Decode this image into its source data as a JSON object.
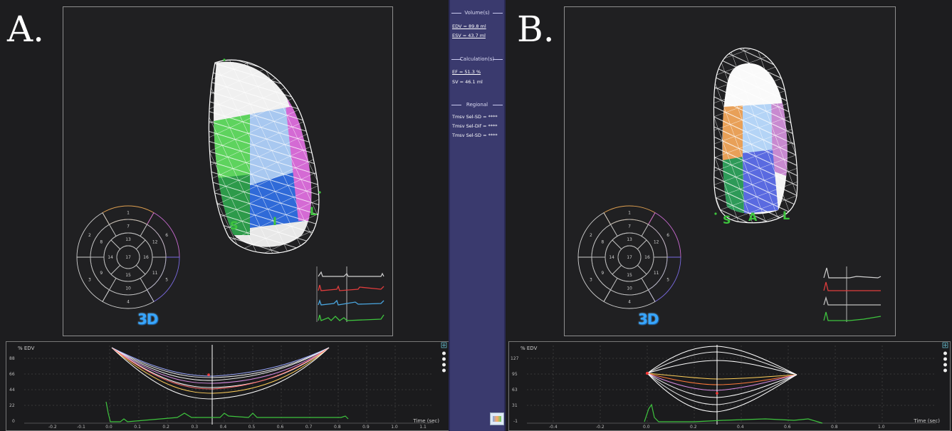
{
  "panels": {
    "a": {
      "letter": "A.",
      "badge": "3D",
      "lv_labels": [
        "S",
        "I",
        "L"
      ],
      "graph": {
        "ylabel": "% EDV",
        "xlabel": "Time (sec)",
        "yticks": [
          "88",
          "66",
          "44",
          "22",
          "0"
        ],
        "xticks": [
          "-0.2",
          "-0.1",
          "0.0",
          "0.1",
          "0.2",
          "0.3",
          "0.4",
          "0.5",
          "0.6",
          "0.7",
          "0.8",
          "0.9",
          "1.0",
          "1.1"
        ]
      }
    },
    "b": {
      "letter": "B.",
      "badge": "3D",
      "lv_labels": [
        "S",
        "A",
        "L"
      ],
      "graph": {
        "ylabel": "% EDV",
        "xlabel": "Time (sec)",
        "yticks": [
          "127",
          "95",
          "63",
          "31",
          "-1"
        ],
        "xticks": [
          "-0.4",
          "-0.2",
          "0.0",
          "0.2",
          "0.4",
          "0.6",
          "0.8",
          "1.0"
        ]
      }
    }
  },
  "bullseye": {
    "outer_ring": [
      "1",
      "6",
      "5",
      "4",
      "3",
      "2"
    ],
    "mid_ring": [
      "7",
      "12",
      "11",
      "10",
      "9",
      "8"
    ],
    "inner_ring": [
      "13",
      "16",
      "15",
      "14"
    ],
    "apex": "17"
  },
  "info": {
    "volumes_title": "Volume(s)",
    "edv": "EDV = 89.8 ml",
    "esv": "ESV = 43.7 ml",
    "calc_title": "Calculation(s)",
    "ef": "EF = 51.3 %",
    "sv": "SV = 46.1 ml",
    "regional_title": "Regional",
    "reg1": "Tmsv Sel-SD = ****",
    "reg2": "Tmsv Sel-Dif = ****",
    "reg3": "Tmsv Sel-SD = ****"
  },
  "colors": {
    "panel_bg": "#1d1d1f",
    "info_panel_bg": "#3a3a6e",
    "badge_blue": "#38a6ff",
    "green_curve": "#3ec43e"
  }
}
